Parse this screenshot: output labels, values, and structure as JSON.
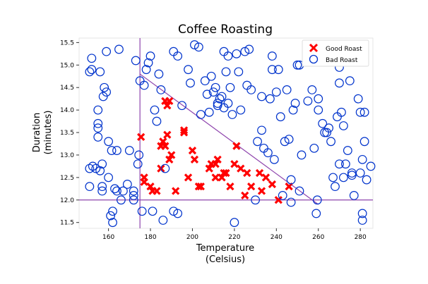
{
  "chart_data": {
    "type": "scatter",
    "title": "Coffee Roasting",
    "xlabel": [
      "Temperature",
      "(Celsius)"
    ],
    "ylabel": [
      "Duration",
      "(minutes)"
    ],
    "xlim": [
      146,
      286
    ],
    "ylim": [
      11.37,
      15.6
    ],
    "xticks": [
      160,
      180,
      200,
      220,
      240,
      260,
      280
    ],
    "yticks": [
      11.5,
      12.0,
      12.5,
      13.0,
      13.5,
      14.0,
      14.5,
      15.0,
      15.5
    ],
    "xtick_labels": [
      "160",
      "180",
      "200",
      "220",
      "240",
      "260",
      "280"
    ],
    "ytick_labels": [
      "11.5",
      "12.0",
      "12.5",
      "13.0",
      "13.5",
      "14.0",
      "14.5",
      "15.0",
      "15.5"
    ],
    "grid": false,
    "legend": {
      "placement": "top-right",
      "entries": [
        {
          "label": "Good Roast",
          "marker": "x-icon",
          "color": "#ff0000"
        },
        {
          "label": "Bad Roast",
          "marker": "circle-icon",
          "color": "#0033cc"
        }
      ]
    },
    "decision_lines": {
      "color": "#8e44ad",
      "lines": [
        {
          "x": [
            175,
            175
          ],
          "y": [
            11.37,
            15.6
          ]
        },
        {
          "x": [
            146,
            286
          ],
          "y": [
            12.0,
            12.0
          ]
        },
        {
          "x": [
            175,
            260
          ],
          "y": [
            14.8,
            11.9
          ]
        }
      ]
    },
    "series": [
      {
        "name": "Good Roast",
        "color": "#ff0000",
        "marker": "x",
        "points": [
          [
            175.5,
            13.4
          ],
          [
            177,
            12.5
          ],
          [
            177,
            12.4
          ],
          [
            180,
            12.3
          ],
          [
            181,
            12.2
          ],
          [
            183,
            12.2
          ],
          [
            185,
            13.2
          ],
          [
            185,
            12.7
          ],
          [
            186,
            13.3
          ],
          [
            187,
            14.2
          ],
          [
            187,
            13.2
          ],
          [
            188,
            14.1
          ],
          [
            188,
            13.45
          ],
          [
            189,
            14.2
          ],
          [
            189,
            12.9
          ],
          [
            190,
            13.0
          ],
          [
            192,
            12.2
          ],
          [
            196,
            13.5
          ],
          [
            196,
            13.55
          ],
          [
            198,
            12.5
          ],
          [
            200,
            13.1
          ],
          [
            201,
            12.9
          ],
          [
            203,
            12.3
          ],
          [
            204,
            12.3
          ],
          [
            208,
            12.7
          ],
          [
            209,
            12.8
          ],
          [
            211,
            12.5
          ],
          [
            211,
            12.8
          ],
          [
            212,
            12.9
          ],
          [
            214,
            12.5
          ],
          [
            215,
            12.6
          ],
          [
            216,
            12.6
          ],
          [
            218,
            12.3
          ],
          [
            220,
            12.8
          ],
          [
            221,
            13.2
          ],
          [
            223,
            12.7
          ],
          [
            225,
            12.1
          ],
          [
            226,
            12.6
          ],
          [
            228,
            12.3
          ],
          [
            232,
            12.6
          ],
          [
            233,
            12.2
          ],
          [
            235,
            12.5
          ],
          [
            238,
            12.35
          ],
          [
            241,
            12.0
          ],
          [
            246,
            12.3
          ]
        ]
      },
      {
        "name": "Bad Roast",
        "color": "#0033cc",
        "marker": "o",
        "points": [
          [
            151,
            14.85
          ],
          [
            151,
            12.7
          ],
          [
            151,
            12.3
          ],
          [
            152,
            15.15
          ],
          [
            152,
            14.9
          ],
          [
            152.5,
            12.75
          ],
          [
            154,
            12.7
          ],
          [
            155,
            13.7
          ],
          [
            155,
            13.6
          ],
          [
            155,
            13.4
          ],
          [
            155,
            14.0
          ],
          [
            156,
            14.85
          ],
          [
            156,
            12.65
          ],
          [
            157,
            12.8
          ],
          [
            157,
            12.3
          ],
          [
            157,
            12.2
          ],
          [
            157.5,
            14.3
          ],
          [
            158,
            14.5
          ],
          [
            159,
            14.4
          ],
          [
            159,
            15.3
          ],
          [
            160,
            13.3
          ],
          [
            160,
            12.5
          ],
          [
            161,
            11.65
          ],
          [
            161.5,
            13.1
          ],
          [
            162,
            11.5
          ],
          [
            162,
            11.75
          ],
          [
            163,
            12.25
          ],
          [
            164,
            12.2
          ],
          [
            164,
            13.1
          ],
          [
            165,
            15.35
          ],
          [
            166,
            12.0
          ],
          [
            167,
            12.2
          ],
          [
            169,
            12.35
          ],
          [
            170,
            13.1
          ],
          [
            172,
            12.1
          ],
          [
            172,
            12.2
          ],
          [
            172,
            12.0
          ],
          [
            173,
            15.1
          ],
          [
            174,
            12.8
          ],
          [
            174.5,
            13.0
          ],
          [
            175,
            14.65
          ],
          [
            176,
            11.75
          ],
          [
            177,
            14.55
          ],
          [
            178,
            14.9
          ],
          [
            179,
            15.05
          ],
          [
            180,
            15.2
          ],
          [
            181,
            11.75
          ],
          [
            182,
            14.0
          ],
          [
            183,
            13.75
          ],
          [
            184,
            14.8
          ],
          [
            185,
            14.45
          ],
          [
            186,
            11.55
          ],
          [
            187,
            12.7
          ],
          [
            191,
            11.75
          ],
          [
            191,
            15.3
          ],
          [
            193,
            11.7
          ],
          [
            193,
            15.2
          ],
          [
            195,
            14.1
          ],
          [
            198,
            14.9
          ],
          [
            199,
            14.6
          ],
          [
            201,
            15.45
          ],
          [
            203,
            15.4
          ],
          [
            204,
            13.9
          ],
          [
            206,
            14.65
          ],
          [
            207,
            14.35
          ],
          [
            208,
            13.95
          ],
          [
            209,
            14.75
          ],
          [
            210,
            14.4
          ],
          [
            211,
            14.5
          ],
          [
            212,
            14.1
          ],
          [
            212,
            14.15
          ],
          [
            213,
            14.25
          ],
          [
            214,
            14.3
          ],
          [
            215,
            14.05
          ],
          [
            215,
            15.3
          ],
          [
            216,
            14.85
          ],
          [
            217,
            15.2
          ],
          [
            217,
            14.15
          ],
          [
            218,
            14.5
          ],
          [
            219,
            13.9
          ],
          [
            220,
            11.5
          ],
          [
            221,
            15.25
          ],
          [
            222,
            14.85
          ],
          [
            223,
            14.0
          ],
          [
            225,
            15.3
          ],
          [
            226,
            14.55
          ],
          [
            227,
            15.35
          ],
          [
            228,
            14.45
          ],
          [
            230,
            12.0
          ],
          [
            231,
            13.3
          ],
          [
            233,
            14.3
          ],
          [
            233,
            13.55
          ],
          [
            234,
            13.15
          ],
          [
            236,
            13.05
          ],
          [
            237,
            14.25
          ],
          [
            238,
            15.2
          ],
          [
            238,
            14.9
          ],
          [
            239,
            12.9
          ],
          [
            240,
            14.4
          ],
          [
            241,
            14.9
          ],
          [
            242,
            13.85
          ],
          [
            243,
            12.1
          ],
          [
            244,
            13.3
          ],
          [
            245,
            14.45
          ],
          [
            246,
            13.35
          ],
          [
            247,
            12.45
          ],
          [
            247,
            11.95
          ],
          [
            248,
            14.0
          ],
          [
            249,
            14.15
          ],
          [
            250,
            15.0
          ],
          [
            251,
            15.0
          ],
          [
            251,
            12.2
          ],
          [
            252,
            13.0
          ],
          [
            255,
            14.2
          ],
          [
            257,
            14.45
          ],
          [
            258,
            13.15
          ],
          [
            259,
            11.7
          ],
          [
            259.5,
            12.0
          ],
          [
            260,
            14.0
          ],
          [
            260,
            14.25
          ],
          [
            262,
            13.7
          ],
          [
            263,
            13.5
          ],
          [
            264,
            13.5
          ],
          [
            265,
            13.6
          ],
          [
            266,
            13.3
          ],
          [
            267,
            12.5
          ],
          [
            268,
            12.3
          ],
          [
            269,
            13.85
          ],
          [
            270,
            14.95
          ],
          [
            270,
            14.6
          ],
          [
            270,
            12.8
          ],
          [
            271,
            13.95
          ],
          [
            272,
            13.65
          ],
          [
            272,
            12.5
          ],
          [
            273,
            12.8
          ],
          [
            274,
            13.1
          ],
          [
            275,
            14.65
          ],
          [
            276,
            12.6
          ],
          [
            276,
            12.55
          ],
          [
            277,
            12.1
          ],
          [
            279,
            14.25
          ],
          [
            280,
            13.95
          ],
          [
            280,
            12.6
          ],
          [
            281,
            12.9
          ],
          [
            281,
            11.55
          ],
          [
            281,
            11.7
          ],
          [
            282,
            13.95
          ],
          [
            282,
            13.3
          ],
          [
            283,
            12.45
          ],
          [
            285,
            12.75
          ]
        ]
      }
    ]
  }
}
